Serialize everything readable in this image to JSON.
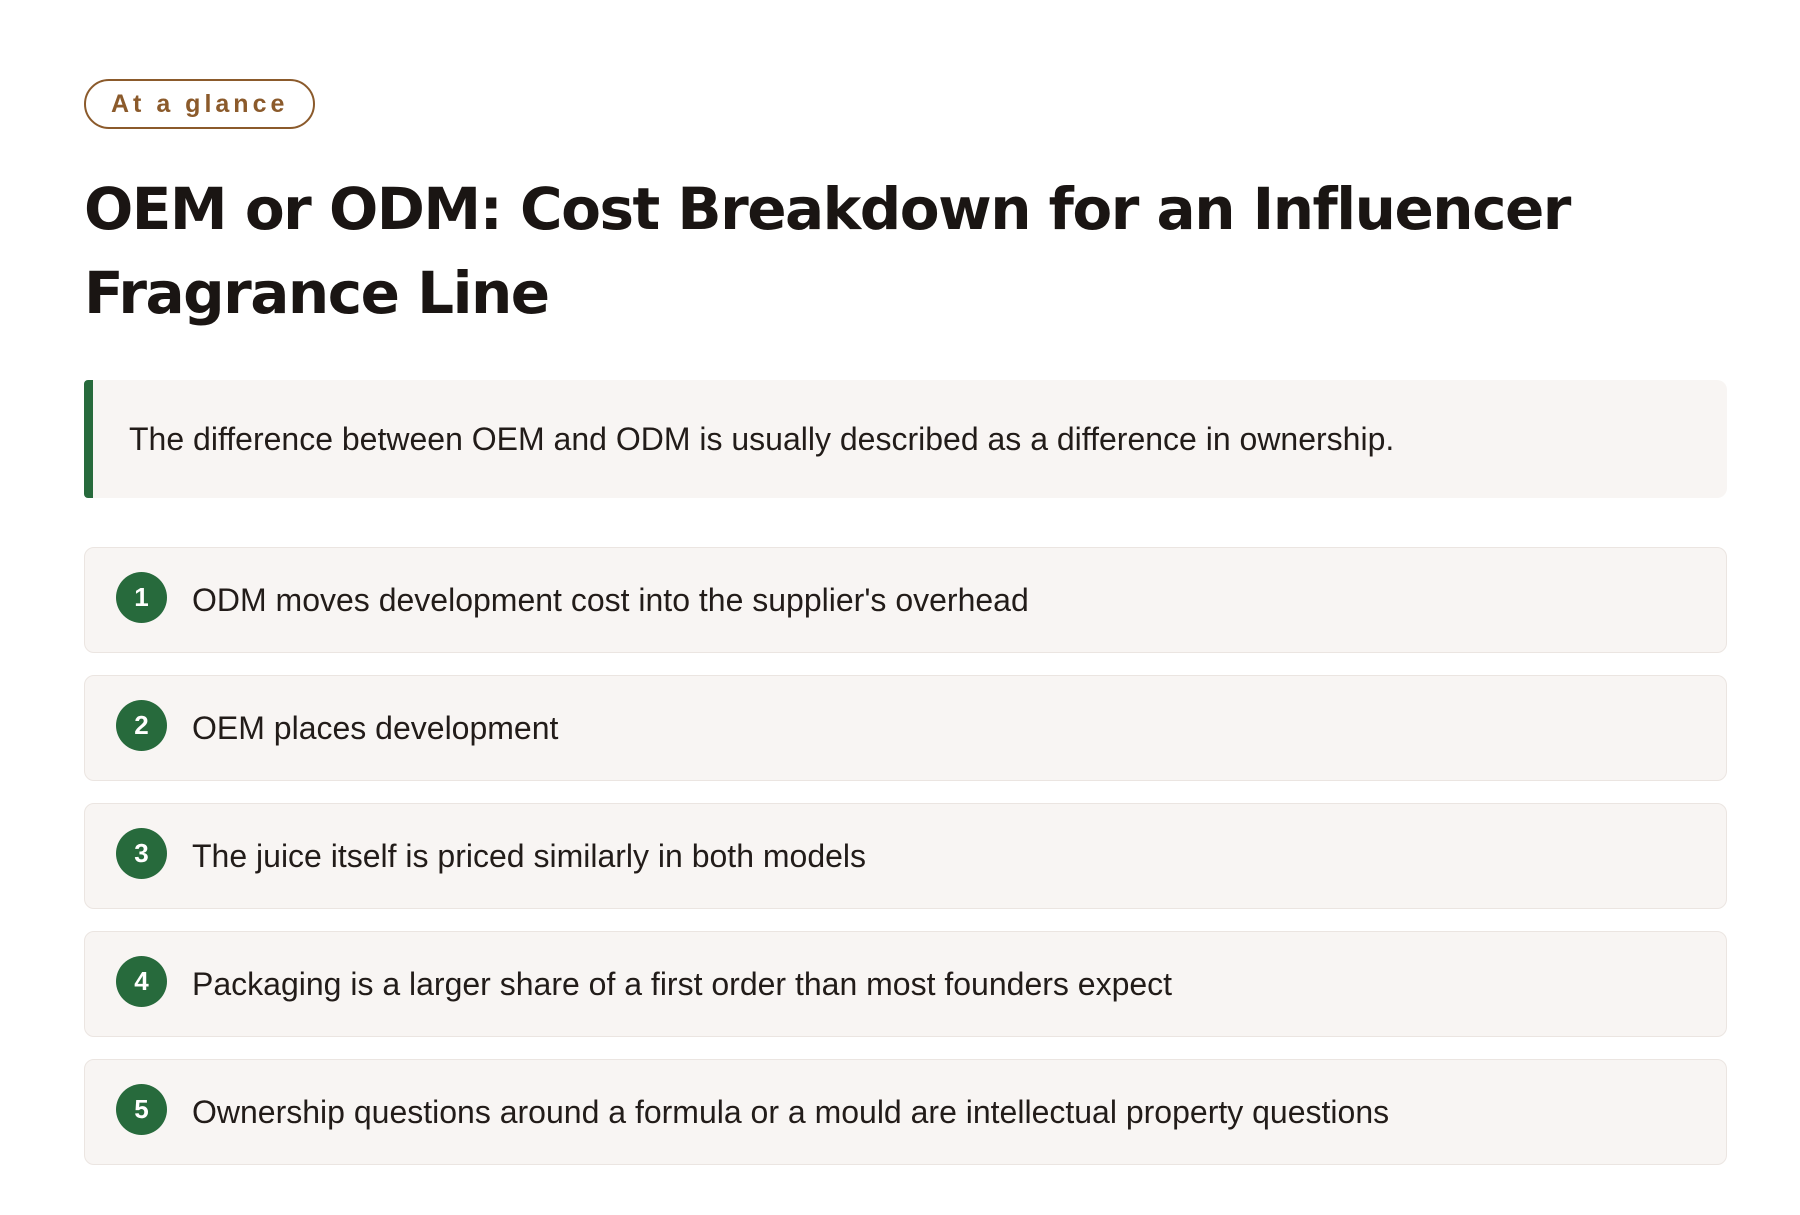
{
  "badge": "At a glance",
  "title": "OEM or ODM: Cost Breakdown for an Influencer Fragrance Line",
  "callout": "The difference between OEM and ODM is usually described as a difference in ownership.",
  "items": [
    {
      "number": "1",
      "text": "ODM moves development cost into the supplier's overhead"
    },
    {
      "number": "2",
      "text": "OEM places development"
    },
    {
      "number": "3",
      "text": "The juice itself is priced similarly in both models"
    },
    {
      "number": "4",
      "text": "Packaging is a larger share of a first order than most founders expect"
    },
    {
      "number": "5",
      "text": "Ownership questions around a formula or a mould are intellectual property questions"
    }
  ],
  "colors": {
    "accent_green": "#276a3c",
    "badge_brown": "#8b5a2b",
    "panel_bg": "#f8f5f3"
  }
}
